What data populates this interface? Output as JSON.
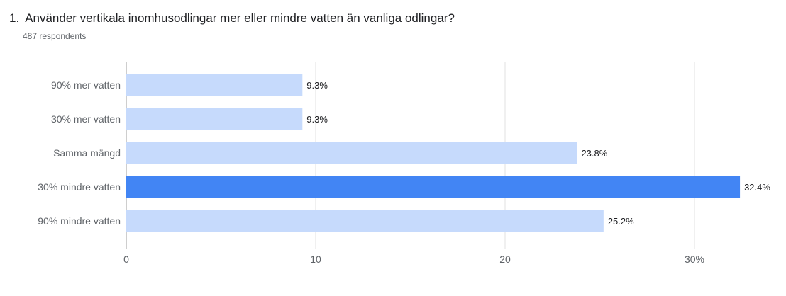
{
  "question": {
    "number": "1.",
    "text": "Använder vertikala inomhusodlingar mer eller mindre vatten än vanliga odlingar?"
  },
  "respondents": "487 respondents",
  "chart_data": {
    "type": "bar",
    "orientation": "horizontal",
    "categories": [
      "90% mer vatten",
      "30% mer vatten",
      "Samma mängd",
      "30% mindre vatten",
      "90% mindre vatten"
    ],
    "values": [
      9.3,
      9.3,
      23.8,
      32.4,
      25.2
    ],
    "value_labels": [
      "9.3%",
      "9.3%",
      "23.8%",
      "32.4%",
      "25.2%"
    ],
    "highlight_index": 3,
    "xlim": [
      0,
      34
    ],
    "ticks": [
      0,
      10,
      20,
      30
    ],
    "tick_labels": [
      "0",
      "10",
      "20",
      "30%"
    ],
    "grid": true,
    "colors": {
      "bar": "#c6dafc",
      "highlight": "#4285f4",
      "grid": "#e0e0e0",
      "axis": "#9e9e9e"
    }
  }
}
